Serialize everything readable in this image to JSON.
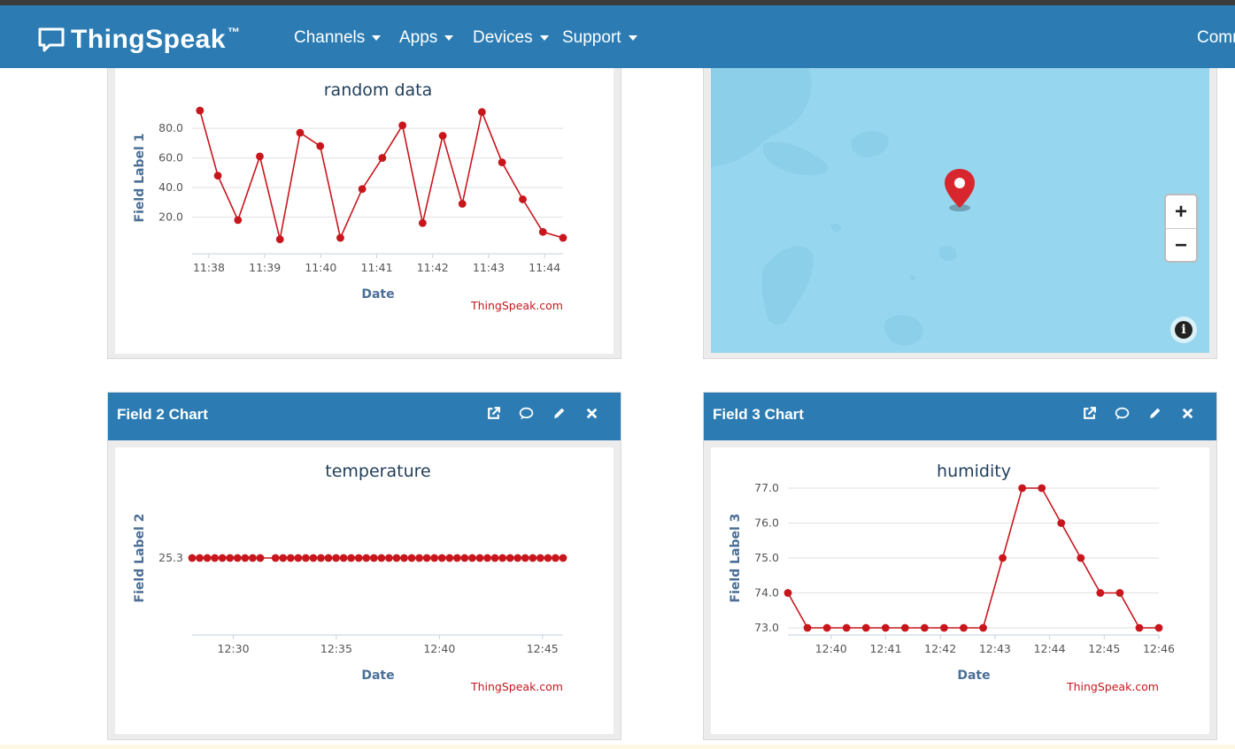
{
  "brand": {
    "name": "ThingSpeak",
    "tm": "™"
  },
  "nav": {
    "items": [
      {
        "label": "Channels"
      },
      {
        "label": "Apps"
      },
      {
        "label": "Devices"
      },
      {
        "label": "Support"
      }
    ],
    "cut_item": "Comm"
  },
  "colors": {
    "nav": "#2c7cb3",
    "series": "#c8161d",
    "map_water": "#96d6ee"
  },
  "panels": {
    "field2": {
      "title": "Field 2 Chart"
    },
    "field3": {
      "title": "Field 3 Chart"
    }
  },
  "map": {
    "zoom_in": "+",
    "zoom_out": "−",
    "info": "i",
    "marker_icon": "map-marker-icon"
  },
  "charts": [
    {
      "id": "field1",
      "credit": "ThingSpeak.com",
      "chart_data": {
        "type": "line",
        "title": "random data",
        "xlabel": "Date",
        "ylabel": "Field Label 1",
        "ylim": [
          0,
          95
        ],
        "yticks": [
          "20.0",
          "40.0",
          "60.0",
          "80.0"
        ],
        "xticks": [
          "11:38",
          "11:39",
          "11:40",
          "11:41",
          "11:42",
          "11:43",
          "11:44"
        ],
        "x_minutes": [
          -0.16,
          0.16,
          0.52,
          0.91,
          1.27,
          1.63,
          1.99,
          2.35,
          2.74,
          3.1,
          3.46,
          3.82,
          4.18,
          4.53,
          4.88,
          5.24,
          5.61,
          5.97,
          6.33
        ],
        "x_start": "11:38",
        "values": [
          92,
          48,
          18,
          61,
          5,
          77,
          68,
          6,
          39,
          60,
          82,
          16,
          75,
          29,
          91,
          57,
          32,
          10,
          6
        ],
        "grid": true
      }
    },
    {
      "id": "field2",
      "credit": "ThingSpeak.com",
      "chart_data": {
        "type": "line",
        "title": "temperature",
        "xlabel": "Date",
        "ylabel": "Field Label 2",
        "yticks": [
          "25.3"
        ],
        "xticks": [
          "12:30",
          "12:35",
          "12:40",
          "12:45"
        ],
        "x_start": "12:28",
        "x_end": "12:46",
        "gap_after_index": 9,
        "values": [
          25.3,
          25.3,
          25.3,
          25.3,
          25.3,
          25.3,
          25.3,
          25.3,
          25.3,
          25.3,
          25.3,
          25.3,
          25.3,
          25.3,
          25.3,
          25.3,
          25.3,
          25.3,
          25.3,
          25.3,
          25.3,
          25.3,
          25.3,
          25.3,
          25.3,
          25.3,
          25.3,
          25.3,
          25.3,
          25.3,
          25.3,
          25.3,
          25.3,
          25.3,
          25.3,
          25.3,
          25.3,
          25.3,
          25.3,
          25.3,
          25.3,
          25.3,
          25.3,
          25.3,
          25.3,
          25.3,
          25.3,
          25.3,
          25.3
        ],
        "grid": false
      }
    },
    {
      "id": "field3",
      "credit": "ThingSpeak.com",
      "chart_data": {
        "type": "line",
        "title": "humidity",
        "xlabel": "Date",
        "ylabel": "Field Label 3",
        "ylim": [
          73.0,
          77.0
        ],
        "yticks": [
          "73.0",
          "74.0",
          "75.0",
          "76.0",
          "77.0"
        ],
        "xticks": [
          "12:40",
          "12:41",
          "12:42",
          "12:43",
          "12:44",
          "12:45",
          "12:46"
        ],
        "x_start": "12:39",
        "x_end": "12:46",
        "values": [
          74,
          73,
          73,
          73,
          73,
          73,
          73,
          73,
          73,
          73,
          73,
          75,
          77,
          77,
          76,
          75,
          74,
          74,
          73,
          73
        ],
        "grid": true
      }
    }
  ]
}
